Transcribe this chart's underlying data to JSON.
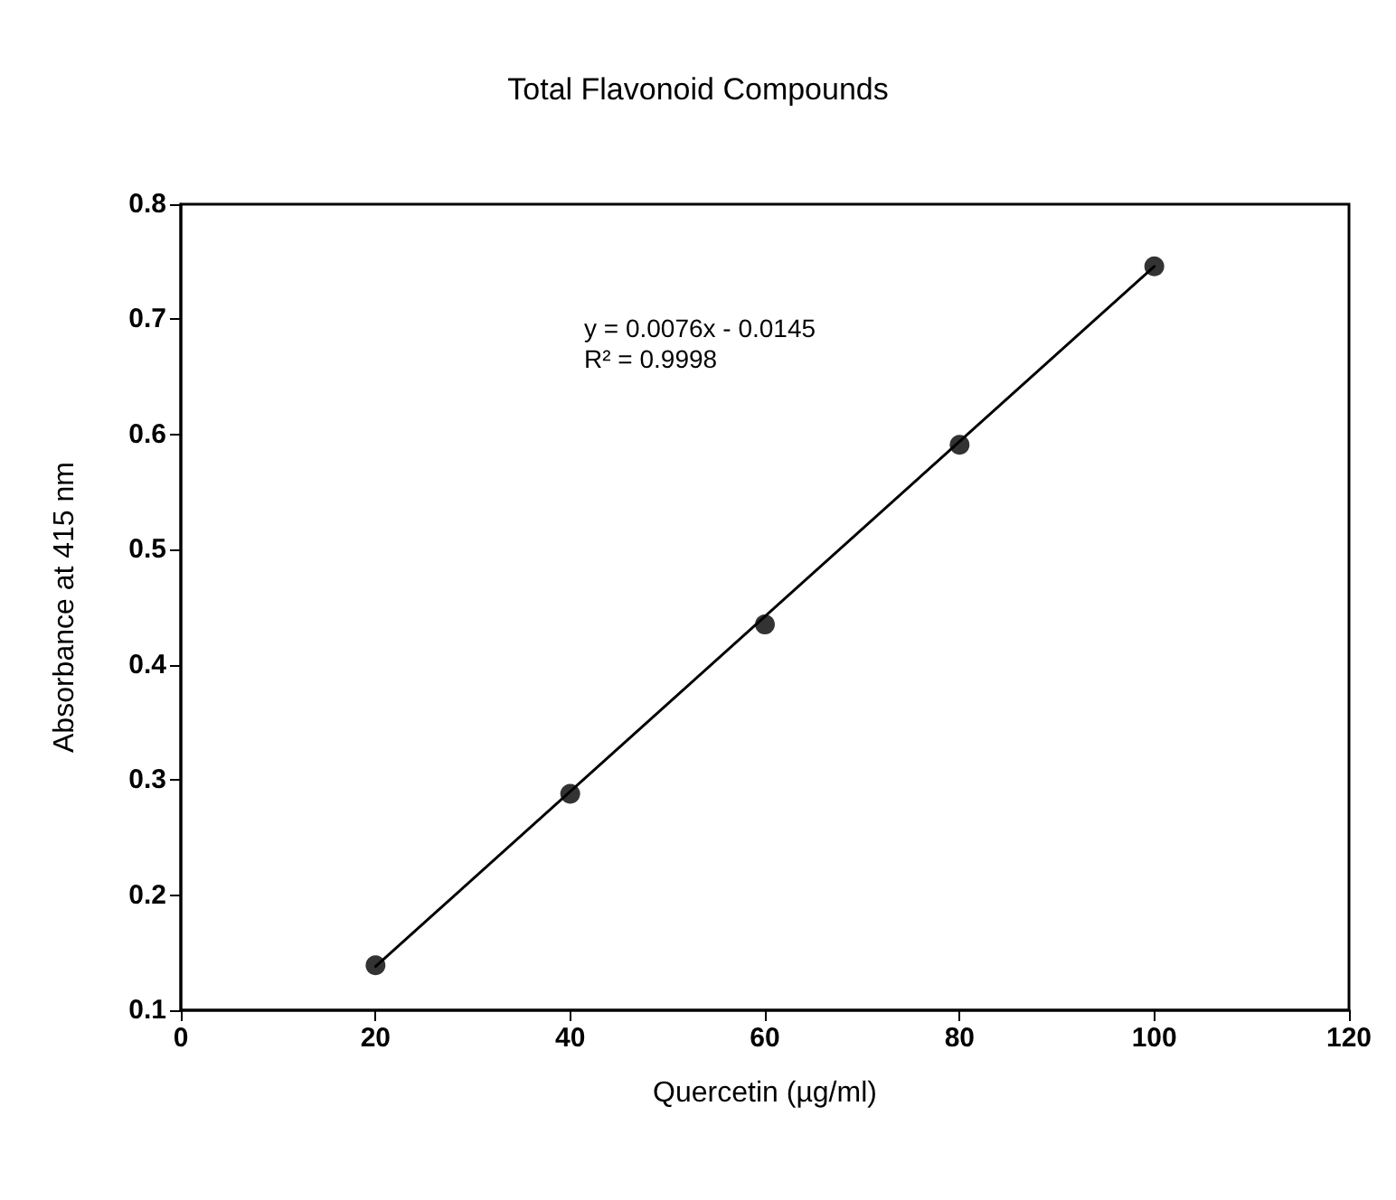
{
  "chart_data": {
    "type": "scatter",
    "title": "Total Flavonoid Compounds",
    "xlabel": "Quercetin (µg/ml)",
    "ylabel": "Absorbance at 415 nm",
    "x": [
      20,
      40,
      60,
      80,
      100
    ],
    "series": [
      {
        "color": "#000000",
        "marker": "circle",
        "values": [
          0.139,
          0.288,
          0.435,
          0.591,
          0.746
        ]
      },
      {
        "type": "line",
        "color": "#000000",
        "marker": "none",
        "line_style": "solid",
        "x": [
          20,
          100
        ],
        "values": [
          0.138,
          0.746
        ]
      }
    ],
    "annotations": [
      "y = 0.0076x - 0.0145\nR² = 0.9998"
    ],
    "xlim": [
      0,
      120
    ],
    "xticks": [
      0,
      20,
      40,
      60,
      80,
      100,
      120
    ],
    "ylim": [
      0.1,
      0.8
    ],
    "yticks": [
      0.1,
      0.2,
      0.3,
      0.4,
      0.5,
      0.6,
      0.7,
      0.8
    ],
    "grid": false
  }
}
